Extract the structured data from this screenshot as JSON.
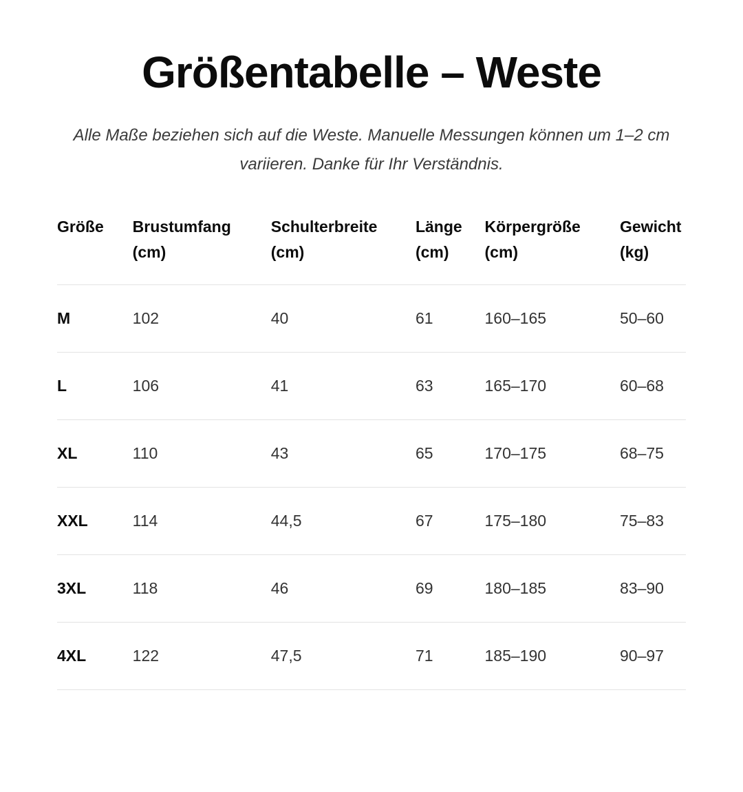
{
  "title": "Größentabelle – Weste",
  "subtitle": {
    "line1": "Alle Maße beziehen sich auf die Weste. Manuelle Messungen können um 1–2 cm",
    "line2": "variieren. Danke für Ihr Verständnis."
  },
  "table": {
    "columns": [
      {
        "label": "Größe",
        "unit": ""
      },
      {
        "label": "Brustumfang",
        "unit": "(cm)"
      },
      {
        "label": "Schulterbreite",
        "unit": "(cm)"
      },
      {
        "label": "Länge",
        "unit": "(cm)"
      },
      {
        "label": "Körpergröße",
        "unit": "(cm)"
      },
      {
        "label": "Gewicht",
        "unit": "(kg)"
      }
    ],
    "rows": [
      {
        "size": "M",
        "chest": "102",
        "shoulder": "40",
        "length": "61",
        "height": "160–165",
        "weight": "50–60"
      },
      {
        "size": "L",
        "chest": "106",
        "shoulder": "41",
        "length": "63",
        "height": "165–170",
        "weight": "60–68"
      },
      {
        "size": "XL",
        "chest": "110",
        "shoulder": "43",
        "length": "65",
        "height": "170–175",
        "weight": "68–75"
      },
      {
        "size": "XXL",
        "chest": "114",
        "shoulder": "44,5",
        "length": "67",
        "height": "175–180",
        "weight": "75–83"
      },
      {
        "size": "3XL",
        "chest": "118",
        "shoulder": "46",
        "length": "69",
        "height": "180–185",
        "weight": "83–90"
      },
      {
        "size": "4XL",
        "chest": "122",
        "shoulder": "47,5",
        "length": "71",
        "height": "185–190",
        "weight": "90–97"
      }
    ]
  },
  "colors": {
    "background": "#ffffff",
    "heading_text": "#0c0c0c",
    "body_text": "#333333",
    "divider": "#e3e3e3"
  }
}
